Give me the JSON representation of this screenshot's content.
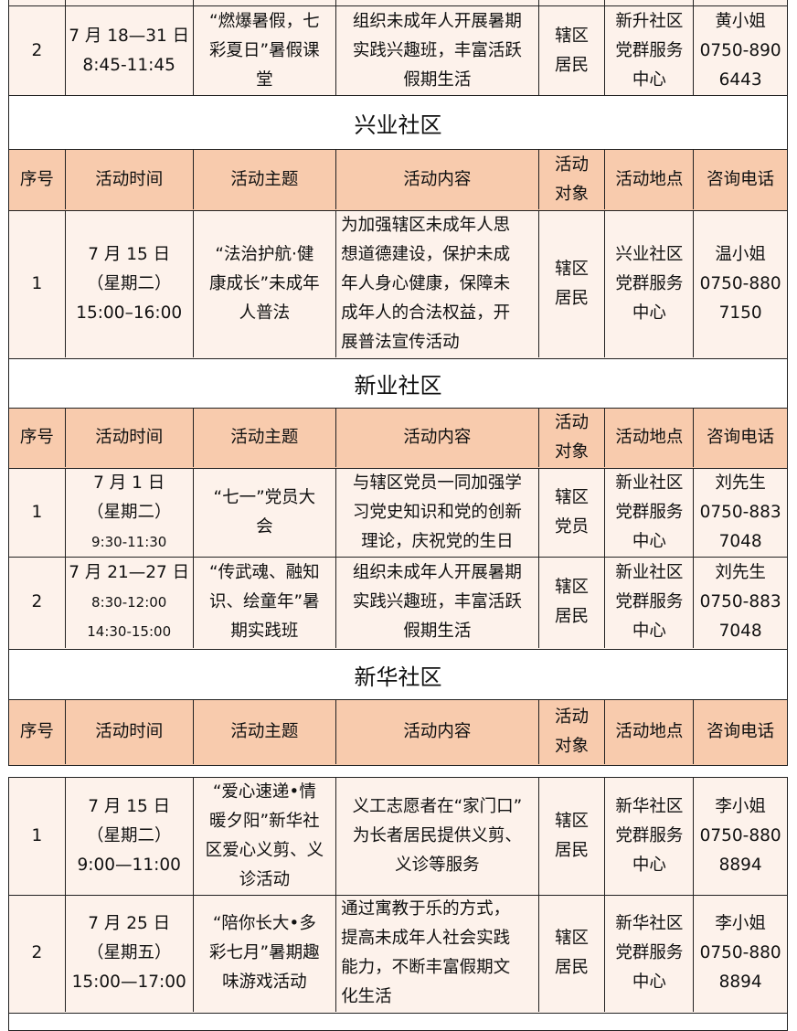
{
  "colors": {
    "header_bg": "#F8CBAD",
    "row_bg": "#FDF2EB",
    "border": "#222222"
  },
  "headers": [
    "序号",
    "活动时间",
    "活动主题",
    "活动内容",
    "活动\n对象",
    "活动地点",
    "咨询电话"
  ],
  "top_row": {
    "cells": [
      [
        "2"
      ],
      [
        "7 月 18—31 日",
        "8:45-11:45"
      ],
      [
        "“燃爆暑假，七",
        "彩夏日”暑假课",
        "堂"
      ],
      [
        "组织未成年人开展暑期",
        "实践兴趣班，丰富活跃",
        "假期生活"
      ],
      [
        "辖区",
        "居民"
      ],
      [
        "新升社区",
        "党群服务",
        "中心"
      ],
      [
        "黄小姐",
        "0750-890",
        "6443"
      ]
    ]
  },
  "sections": [
    {
      "title": "兴业社区",
      "rows": [
        {
          "cells": [
            [
              "1"
            ],
            [
              "7 月 15 日",
              "（星期二）",
              "15:00–16:00"
            ],
            [
              "“法治护航·健",
              "康成长”未成年",
              "人普法"
            ],
            [
              "为加强辖区未成年人思",
              "想道德建设，保护未成",
              "年人身心健康，保障未",
              "成年人的合法权益，开",
              "展普法宣传活动"
            ],
            [
              "辖区",
              "居民"
            ],
            [
              "兴业社区",
              "党群服务",
              "中心"
            ],
            [
              "温小姐",
              "0750-880",
              "7150"
            ]
          ]
        }
      ]
    },
    {
      "title": "新业社区",
      "rows": [
        {
          "cells": [
            [
              "1"
            ],
            [
              "7 月 1 日",
              "（星期二）",
              "9:30-11:30"
            ],
            [
              "“七一”党员大",
              "会"
            ],
            [
              "与辖区党员一同加强学",
              "习党史知识和党的创新",
              "理论，庆祝党的生日"
            ],
            [
              "辖区",
              "党员"
            ],
            [
              "新业社区",
              "党群服务",
              "中心"
            ],
            [
              "刘先生",
              "0750-883",
              "7048"
            ]
          ]
        },
        {
          "cells": [
            [
              "2"
            ],
            [
              "7 月 21—27 日",
              "8:30-12:00",
              "14:30-15:00"
            ],
            [
              "“传武魂、融知",
              "识、绘童年”暑",
              "期实践班"
            ],
            [
              "组织未成年人开展暑期",
              "实践兴趣班，丰富活跃",
              "假期生活"
            ],
            [
              "辖区",
              "居民"
            ],
            [
              "新业社区",
              "党群服务",
              "中心"
            ],
            [
              "刘先生",
              "0750-883",
              "7048"
            ]
          ]
        }
      ]
    },
    {
      "title": "新华社区",
      "rows": [
        {
          "cells": [
            [
              "1"
            ],
            [
              "7 月 15 日",
              "（星期二）",
              "9:00—11:00"
            ],
            [
              "“爱心速递•情",
              "暖夕阳”新华社",
              "区爱心义剪、义",
              "诊活动"
            ],
            [
              "义工志愿者在“家门口”",
              "为长者居民提供义剪、",
              "义诊等服务"
            ],
            [
              "辖区",
              "居民"
            ],
            [
              "新华社区",
              "党群服务",
              "中心"
            ],
            [
              "李小姐",
              "0750-880",
              "8894"
            ]
          ]
        },
        {
          "cells": [
            [
              "2"
            ],
            [
              "7 月 25 日",
              "（星期五）",
              "15:00—17:00"
            ],
            [
              "“陪你长大•多",
              "彩七月”暑期趣",
              "味游戏活动"
            ],
            [
              "通过寓教于乐的方式，",
              "提高未成年人社会实践",
              "能力，不断丰富假期文",
              "化生活"
            ],
            [
              "辖区",
              "居民"
            ],
            [
              "新华社区",
              "党群服务",
              "中心"
            ],
            [
              "李小姐",
              "0750-880",
              "8894"
            ]
          ]
        }
      ]
    }
  ]
}
